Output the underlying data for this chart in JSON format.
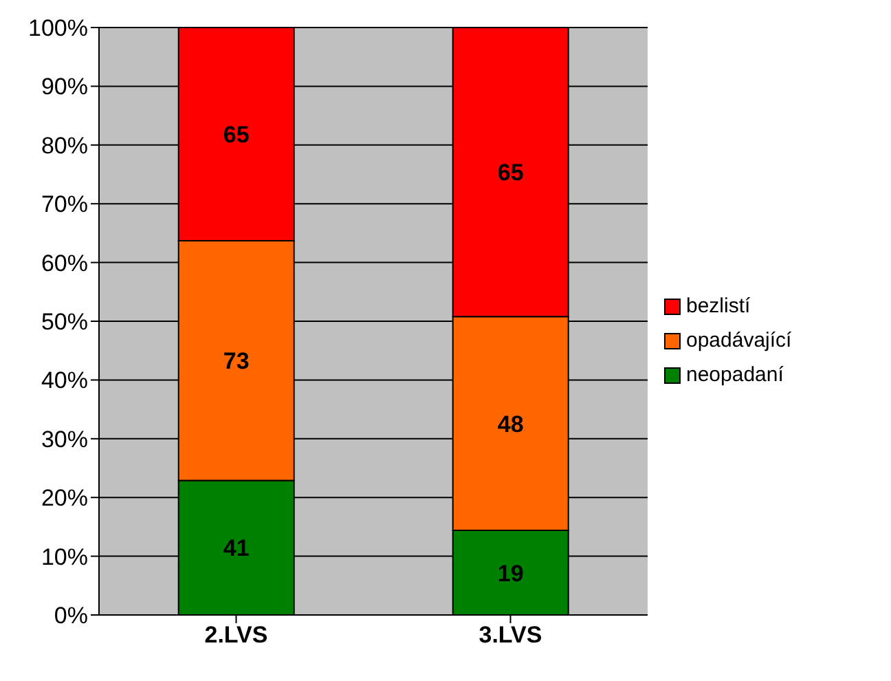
{
  "chart_data": {
    "type": "bar",
    "stacked": true,
    "categories": [
      "2.LVS",
      "3.LVS"
    ],
    "series": [
      {
        "name": "neopadaní",
        "color": "#008000",
        "values": [
          22.9,
          14.4
        ]
      },
      {
        "name": "opadávající",
        "color": "#ff6600",
        "values": [
          40.8,
          36.4
        ]
      },
      {
        "name": "bezlistí",
        "color": "#ff0000",
        "values": [
          36.3,
          49.2
        ]
      }
    ],
    "ylim": [
      0,
      100
    ],
    "yticks": [
      {
        "value": 0,
        "label": "0%"
      },
      {
        "value": 10,
        "label": "10%"
      },
      {
        "value": 20,
        "label": "20%"
      },
      {
        "value": 30,
        "label": "30%"
      },
      {
        "value": 40,
        "label": "40%"
      },
      {
        "value": 50,
        "label": "50%"
      },
      {
        "value": 60,
        "label": "60%"
      },
      {
        "value": 70,
        "label": "70%"
      },
      {
        "value": 80,
        "label": "80%"
      },
      {
        "value": 90,
        "label": "90%"
      },
      {
        "value": 100,
        "label": "100%"
      }
    ],
    "annotations": [
      "41",
      "73",
      "65",
      "19",
      "48",
      "65"
    ],
    "grid": "y",
    "legend": "right"
  }
}
